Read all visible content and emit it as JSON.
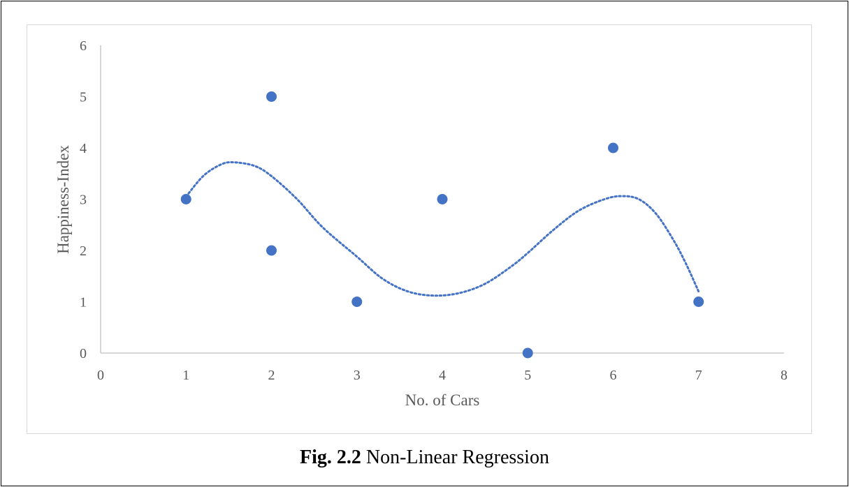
{
  "caption": {
    "label": "Fig. 2.2",
    "text": " Non-Linear Regression"
  },
  "colors": {
    "marker": "#4472c4",
    "trendline": "#4472c4",
    "axis": "#bfbfbf",
    "text": "#595959"
  },
  "chart_data": {
    "type": "scatter",
    "xlabel": "No. of Cars",
    "ylabel": "Happiness-Index",
    "xlim": [
      0,
      8
    ],
    "ylim": [
      0,
      6
    ],
    "xticks": [
      0,
      1,
      2,
      3,
      4,
      5,
      6,
      7,
      8
    ],
    "yticks": [
      0,
      1,
      2,
      3,
      4,
      5,
      6
    ],
    "grid": false,
    "points": [
      {
        "x": 1,
        "y": 3
      },
      {
        "x": 2,
        "y": 5
      },
      {
        "x": 2,
        "y": 2
      },
      {
        "x": 3,
        "y": 1
      },
      {
        "x": 4,
        "y": 3
      },
      {
        "x": 5,
        "y": 0
      },
      {
        "x": 6,
        "y": 4
      },
      {
        "x": 7,
        "y": 1
      }
    ],
    "trendline": {
      "type": "polynomial",
      "style": "dotted",
      "points": [
        {
          "x": 1.0,
          "y": 3.05
        },
        {
          "x": 1.2,
          "y": 3.45
        },
        {
          "x": 1.4,
          "y": 3.67
        },
        {
          "x": 1.55,
          "y": 3.72
        },
        {
          "x": 1.8,
          "y": 3.65
        },
        {
          "x": 2.0,
          "y": 3.45
        },
        {
          "x": 2.3,
          "y": 3.0
        },
        {
          "x": 2.6,
          "y": 2.45
        },
        {
          "x": 3.0,
          "y": 1.88
        },
        {
          "x": 3.3,
          "y": 1.45
        },
        {
          "x": 3.6,
          "y": 1.2
        },
        {
          "x": 3.9,
          "y": 1.12
        },
        {
          "x": 4.2,
          "y": 1.17
        },
        {
          "x": 4.5,
          "y": 1.35
        },
        {
          "x": 4.8,
          "y": 1.68
        },
        {
          "x": 5.0,
          "y": 1.95
        },
        {
          "x": 5.3,
          "y": 2.4
        },
        {
          "x": 5.6,
          "y": 2.78
        },
        {
          "x": 5.9,
          "y": 3.0
        },
        {
          "x": 6.1,
          "y": 3.06
        },
        {
          "x": 6.3,
          "y": 3.0
        },
        {
          "x": 6.5,
          "y": 2.72
        },
        {
          "x": 6.7,
          "y": 2.22
        },
        {
          "x": 6.85,
          "y": 1.75
        },
        {
          "x": 7.0,
          "y": 1.2
        }
      ]
    }
  }
}
